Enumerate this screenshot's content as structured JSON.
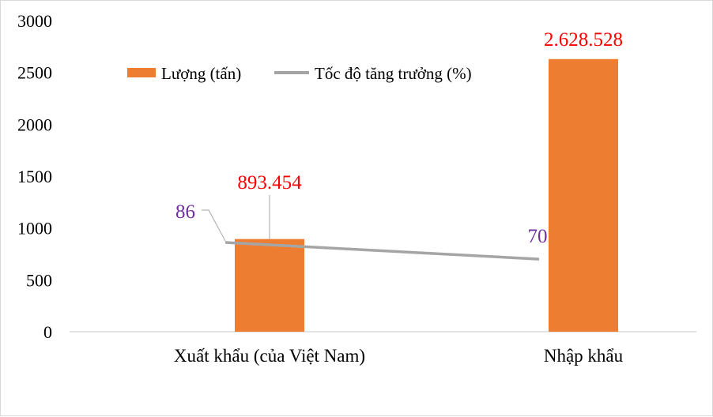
{
  "chart_data": {
    "type": "bar",
    "categories": [
      "Xuất khẩu (của Việt Nam)",
      "Nhập khẩu"
    ],
    "ylim": [
      0,
      3000
    ],
    "yticks": [
      0,
      500,
      1000,
      1500,
      2000,
      2500,
      3000
    ],
    "series": [
      {
        "name": "Lượng (tấn)",
        "type": "bar",
        "color": "#ed7d31",
        "values": [
          893.454,
          2628.528
        ],
        "labels": [
          "893.454",
          "2.628.528"
        ],
        "label_color": "#ff0000"
      },
      {
        "name": "Tốc độ tăng trưởng (%)",
        "type": "line",
        "color": "#a5a5a5",
        "values": [
          86,
          70
        ],
        "labels": [
          "86",
          "70"
        ],
        "label_color": "#7030a0"
      }
    ],
    "legend_position": "top",
    "grid": false
  }
}
